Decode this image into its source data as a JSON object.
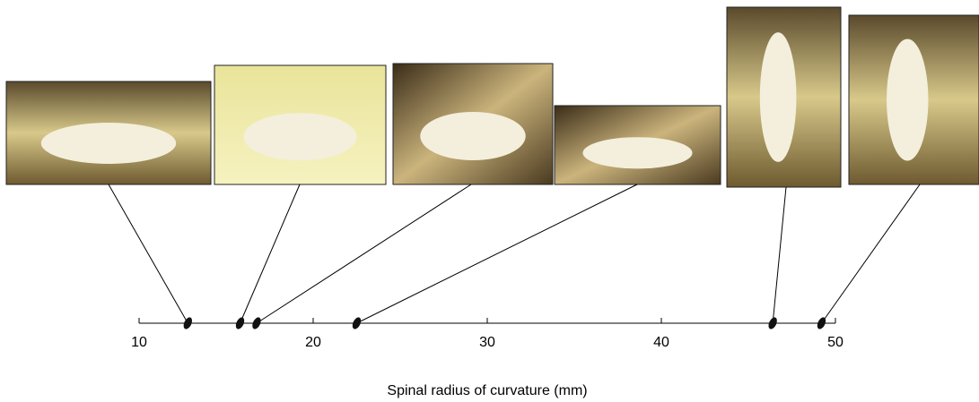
{
  "chart_data": {
    "type": "strip",
    "x": [
      12.8,
      15.8,
      16.75,
      22.5,
      46.4,
      49.2
    ],
    "xlim": [
      10,
      50
    ],
    "xticks": [
      10,
      20,
      30,
      40,
      50
    ],
    "xlabel": "Spinal radius of curvature (mm)",
    "color": "#111111"
  }
}
